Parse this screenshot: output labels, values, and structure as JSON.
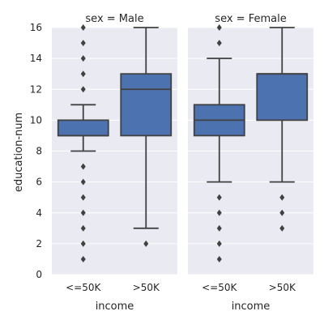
{
  "chart_data": {
    "type": "box",
    "ylabel": "education-num",
    "xlabel": "income",
    "ylim": [
      0,
      16
    ],
    "yticks": [
      0,
      2,
      4,
      6,
      8,
      10,
      12,
      14,
      16
    ],
    "categories": [
      "<=50K",
      ">50K"
    ],
    "box_color": "#4c72b0",
    "grid": true,
    "facets": [
      {
        "title": "sex =  Male",
        "boxes": [
          {
            "category": "<=50K",
            "whisker_low": 8,
            "q1": 9,
            "median": 9,
            "q3": 10,
            "whisker_high": 11,
            "outliers": [
              1,
              2,
              3,
              4,
              5,
              6,
              7,
              12,
              13,
              14,
              15,
              16
            ]
          },
          {
            "category": ">50K",
            "whisker_low": 3,
            "q1": 9,
            "median": 12,
            "q3": 13,
            "whisker_high": 16,
            "outliers": [
              2
            ]
          }
        ]
      },
      {
        "title": "sex =  Female",
        "boxes": [
          {
            "category": "<=50K",
            "whisker_low": 6,
            "q1": 9,
            "median": 10,
            "q3": 11,
            "whisker_high": 14,
            "outliers": [
              1,
              2,
              3,
              4,
              5,
              15,
              16
            ]
          },
          {
            "category": ">50K",
            "whisker_low": 6,
            "q1": 10,
            "median": 13,
            "q3": 13,
            "whisker_high": 16,
            "outliers": [
              3,
              4,
              5
            ]
          }
        ]
      }
    ]
  }
}
